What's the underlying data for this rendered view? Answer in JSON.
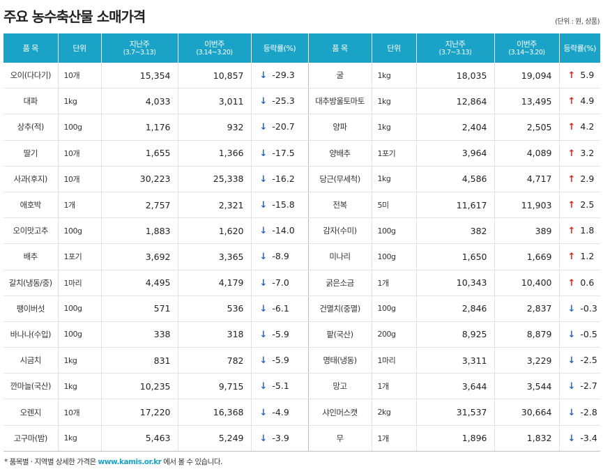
{
  "title": "주요 농수축산물 소매가격",
  "unit_note": "(단위 : 원, 상품)",
  "headers": {
    "item": "품 목",
    "unit": "단위",
    "prev_week_main": "지난주",
    "prev_week_sub": "(3.7~3.13)",
    "this_week_main": "이번주",
    "this_week_sub": "(3.14~3.20)",
    "change": "등락률(%)"
  },
  "left_rows": [
    {
      "item": "오이(다다기)",
      "unit": "10개",
      "prev": "15,354",
      "curr": "10,857",
      "dir": "down",
      "change": "-29.3"
    },
    {
      "item": "대파",
      "unit": "1kg",
      "prev": "4,033",
      "curr": "3,011",
      "dir": "down",
      "change": "-25.3"
    },
    {
      "item": "상추(적)",
      "unit": "100g",
      "prev": "1,176",
      "curr": "932",
      "dir": "down",
      "change": "-20.7"
    },
    {
      "item": "딸기",
      "unit": "10개",
      "prev": "1,655",
      "curr": "1,366",
      "dir": "down",
      "change": "-17.5"
    },
    {
      "item": "사과(후지)",
      "unit": "10개",
      "prev": "30,223",
      "curr": "25,338",
      "dir": "down",
      "change": "-16.2"
    },
    {
      "item": "애호박",
      "unit": "1개",
      "prev": "2,757",
      "curr": "2,321",
      "dir": "down",
      "change": "-15.8"
    },
    {
      "item": "오이맛고추",
      "unit": "100g",
      "prev": "1,883",
      "curr": "1,620",
      "dir": "down",
      "change": "-14.0"
    },
    {
      "item": "배추",
      "unit": "1포기",
      "prev": "3,692",
      "curr": "3,365",
      "dir": "down",
      "change": "-8.9"
    },
    {
      "item": "갈치(냉동/중)",
      "unit": "1마리",
      "prev": "4,495",
      "curr": "4,179",
      "dir": "down",
      "change": "-7.0"
    },
    {
      "item": "팽이버섯",
      "unit": "100g",
      "prev": "571",
      "curr": "536",
      "dir": "down",
      "change": "-6.1"
    },
    {
      "item": "바나나(수입)",
      "unit": "100g",
      "prev": "338",
      "curr": "318",
      "dir": "down",
      "change": "-5.9"
    },
    {
      "item": "시금치",
      "unit": "1kg",
      "prev": "831",
      "curr": "782",
      "dir": "down",
      "change": "-5.9"
    },
    {
      "item": "깐마늘(국산)",
      "unit": "1kg",
      "prev": "10,235",
      "curr": "9,715",
      "dir": "down",
      "change": "-5.1"
    },
    {
      "item": "오렌지",
      "unit": "10개",
      "prev": "17,220",
      "curr": "16,368",
      "dir": "down",
      "change": "-4.9"
    },
    {
      "item": "고구마(밤)",
      "unit": "1kg",
      "prev": "5,463",
      "curr": "5,249",
      "dir": "down",
      "change": "-3.9"
    }
  ],
  "right_rows": [
    {
      "item": "굴",
      "unit": "1kg",
      "prev": "18,035",
      "curr": "19,094",
      "dir": "up",
      "change": "5.9"
    },
    {
      "item": "대추방울토마토",
      "unit": "1kg",
      "prev": "12,864",
      "curr": "13,495",
      "dir": "up",
      "change": "4.9"
    },
    {
      "item": "양파",
      "unit": "1kg",
      "prev": "2,404",
      "curr": "2,505",
      "dir": "up",
      "change": "4.2"
    },
    {
      "item": "양배추",
      "unit": "1포기",
      "prev": "3,964",
      "curr": "4,089",
      "dir": "up",
      "change": "3.2"
    },
    {
      "item": "당근(무세척)",
      "unit": "1kg",
      "prev": "4,586",
      "curr": "4,717",
      "dir": "up",
      "change": "2.9"
    },
    {
      "item": "전복",
      "unit": "5미",
      "prev": "11,617",
      "curr": "11,903",
      "dir": "up",
      "change": "2.5"
    },
    {
      "item": "감자(수미)",
      "unit": "100g",
      "prev": "382",
      "curr": "389",
      "dir": "up",
      "change": "1.8"
    },
    {
      "item": "미나리",
      "unit": "100g",
      "prev": "1,650",
      "curr": "1,669",
      "dir": "up",
      "change": "1.2"
    },
    {
      "item": "굵은소금",
      "unit": "1개",
      "prev": "10,343",
      "curr": "10,400",
      "dir": "up",
      "change": "0.6"
    },
    {
      "item": "건멸치(중멸)",
      "unit": "100g",
      "prev": "2,846",
      "curr": "2,837",
      "dir": "down",
      "change": "-0.3"
    },
    {
      "item": "팥(국산)",
      "unit": "200g",
      "prev": "8,925",
      "curr": "8,879",
      "dir": "down",
      "change": "-0.5"
    },
    {
      "item": "명태(냉동)",
      "unit": "1마리",
      "prev": "3,311",
      "curr": "3,229",
      "dir": "down",
      "change": "-2.5"
    },
    {
      "item": "망고",
      "unit": "1개",
      "prev": "3,644",
      "curr": "3,544",
      "dir": "down",
      "change": "-2.7"
    },
    {
      "item": "샤인머스캣",
      "unit": "2kg",
      "prev": "31,537",
      "curr": "30,664",
      "dir": "down",
      "change": "-2.8"
    },
    {
      "item": "무",
      "unit": "1개",
      "prev": "1,896",
      "curr": "1,832",
      "dir": "down",
      "change": "-3.4"
    }
  ],
  "arrows": {
    "up": "🠕",
    "down": "🠗"
  },
  "colors": {
    "header_bg": "#1aa3c7",
    "up": "#d9261c",
    "down": "#2a66c8"
  },
  "footer": {
    "prefix": "* 품목별 · 지역별 상세한 가격은 ",
    "link": "www.kamis.or.kr",
    "suffix": " 에서 볼 수 있습니다."
  }
}
